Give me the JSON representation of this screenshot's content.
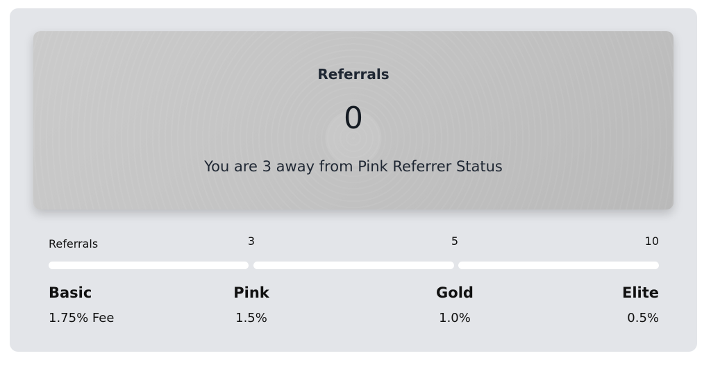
{
  "hero": {
    "title": "Referrals",
    "count": "0",
    "message": "You are 3 away from Pink Referrer Status"
  },
  "progress": {
    "label": "Referrals",
    "current_referrals": 0,
    "thresholds": [
      "3",
      "5",
      "10"
    ],
    "bar_color": "#ffffff"
  },
  "tiers": [
    {
      "name": "Basic",
      "fee": "1.75% Fee"
    },
    {
      "name": "Pink",
      "fee": "1.5%"
    },
    {
      "name": "Gold",
      "fee": "1.0%"
    },
    {
      "name": "Elite",
      "fee": "0.5%"
    }
  ]
}
